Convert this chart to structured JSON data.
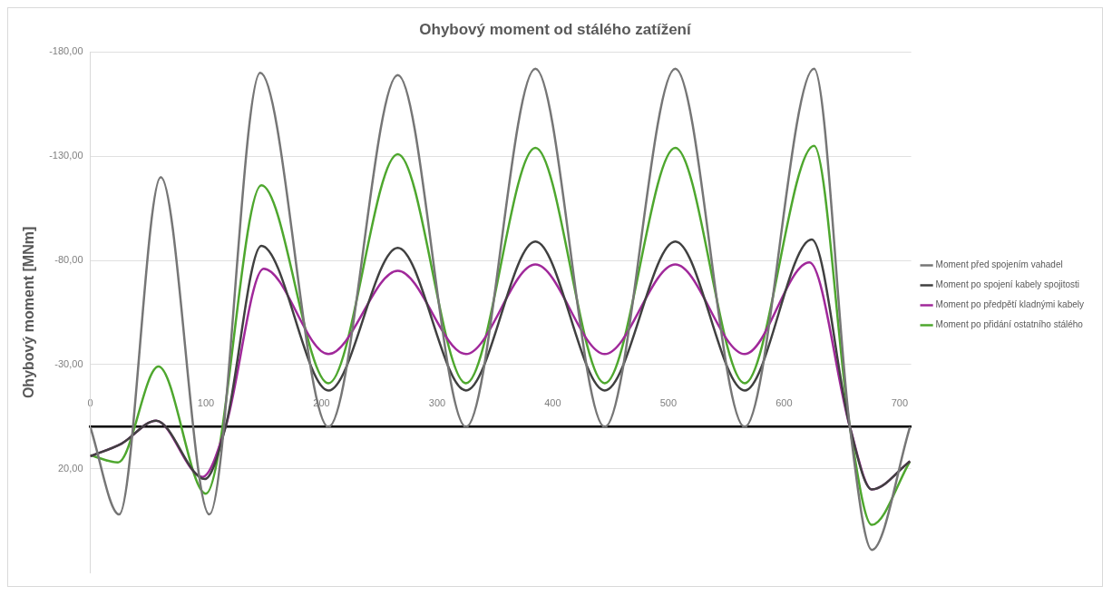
{
  "chart_data": {
    "type": "line",
    "title": "Ohybový moment od stálého zatížení",
    "ylabel": "Ohybový moment [MNm]",
    "xlim": [
      0,
      710
    ],
    "xticks": [
      0,
      100,
      200,
      300,
      400,
      500,
      600,
      700
    ],
    "ylim": [
      70,
      -180
    ],
    "yticks": [
      {
        "value": -180,
        "label": "-180,00"
      },
      {
        "value": -130,
        "label": "-130,00"
      },
      {
        "value": -80,
        "label": "-80,00"
      },
      {
        "value": -30,
        "label": "-30,00"
      },
      {
        "value": 20,
        "label": "20,00"
      }
    ],
    "grid": "y",
    "legend": "right",
    "marker": "none",
    "line_style": "solid",
    "series": [
      {
        "name": "Moment před spojením vahadel",
        "color": "#767676",
        "x": [
          0,
          25,
          61,
          103,
          147,
          206,
          266,
          325,
          385,
          445,
          506,
          566,
          626,
          657,
          676,
          709
        ],
        "values": [
          0,
          42,
          -120,
          42,
          -170,
          0,
          -169,
          0,
          -172,
          0,
          -172,
          0,
          -172,
          0,
          59,
          0
        ]
      },
      {
        "name": "Moment po spojení kabely spojitosti",
        "color": "#404040",
        "x": [
          0,
          27,
          57,
          99,
          117,
          148,
          206,
          266,
          325,
          385,
          445,
          506,
          566,
          624,
          657,
          676,
          709
        ],
        "values": [
          14,
          8,
          -3,
          25,
          0,
          -87,
          -17.5,
          -86,
          -17.5,
          -89,
          -17.5,
          -89,
          -17.5,
          -90,
          0,
          30,
          16.5
        ]
      },
      {
        "name": "Moment po předpětí kladnými kabely",
        "color": "#a0289a",
        "x": [
          0,
          27,
          57,
          97,
          117,
          150,
          206,
          266,
          325,
          385,
          445,
          506,
          566,
          622,
          657,
          676,
          709
        ],
        "values": [
          14,
          8,
          -3,
          24,
          0,
          -76,
          -35,
          -75,
          -35,
          -78,
          -35,
          -78,
          -35,
          -79,
          0,
          30,
          16.5
        ]
      },
      {
        "name": "Moment po přidání ostatního stálého",
        "color": "#4ea72e",
        "x": [
          0,
          24,
          59,
          100,
          148,
          206,
          266,
          325,
          385,
          445,
          506,
          566,
          626,
          657,
          676,
          709
        ],
        "values": [
          13.5,
          17,
          -29,
          32,
          -116,
          -21,
          -131,
          -21,
          -134,
          -21,
          -134,
          -21,
          -135,
          0,
          47,
          16.5
        ]
      }
    ]
  }
}
